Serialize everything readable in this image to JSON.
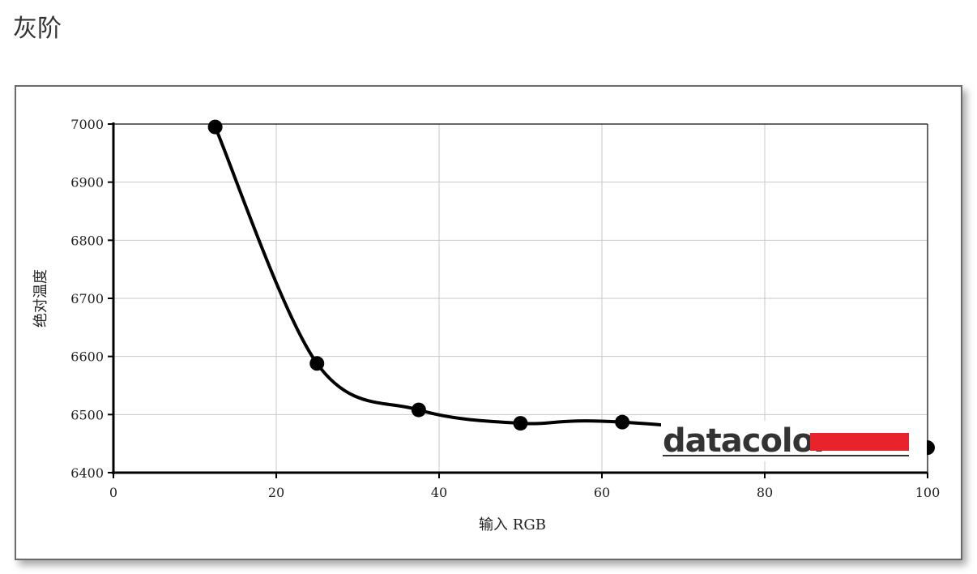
{
  "page": {
    "title": "灰阶"
  },
  "chart_data": {
    "type": "line",
    "title": "",
    "xlabel": "输入 RGB",
    "ylabel": "绝对温度",
    "xlim": [
      0,
      100
    ],
    "ylim": [
      6400,
      7000
    ],
    "x_ticks": [
      0,
      20,
      40,
      60,
      80,
      100
    ],
    "y_ticks": [
      6400,
      6500,
      6600,
      6700,
      6800,
      6900,
      7000
    ],
    "x_tick_labels": [
      "0",
      "20",
      "40",
      "60",
      "80",
      "100"
    ],
    "y_tick_labels": [
      "6400",
      "6500",
      "6600",
      "6700",
      "6800",
      "6900",
      "7000"
    ],
    "grid": true,
    "smooth": true,
    "series": [
      {
        "color": "#000000",
        "x": [
          12.5,
          25,
          37.5,
          50,
          62.5,
          100
        ],
        "y": [
          6995,
          6588,
          6508,
          6485,
          6487,
          6443
        ]
      }
    ]
  },
  "watermark": {
    "text": "datacolor",
    "accent_color": "#e8232c"
  }
}
